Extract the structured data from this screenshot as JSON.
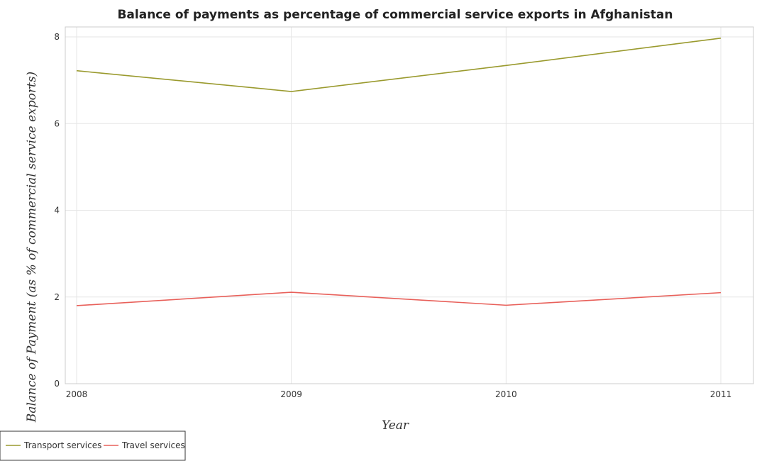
{
  "chart_data": {
    "type": "line",
    "title": "Balance of payments as percentage of commercial service exports in Afghanistan",
    "xlabel": "Year",
    "ylabel": "Balance of Payment (as % of commercial service exports)",
    "categories": [
      "2008",
      "2009",
      "2010",
      "2011"
    ],
    "ylim": [
      0,
      8
    ],
    "yticks": [
      0,
      2,
      4,
      6,
      8
    ],
    "grid": true,
    "legend_position": "bottom-left",
    "series": [
      {
        "name": "Transport services",
        "color": "#9a9a2e",
        "values": [
          7.22,
          6.74,
          7.34,
          7.97
        ]
      },
      {
        "name": "Travel services",
        "color": "#e8605a",
        "values": [
          1.8,
          2.11,
          1.81,
          2.1
        ]
      }
    ]
  }
}
